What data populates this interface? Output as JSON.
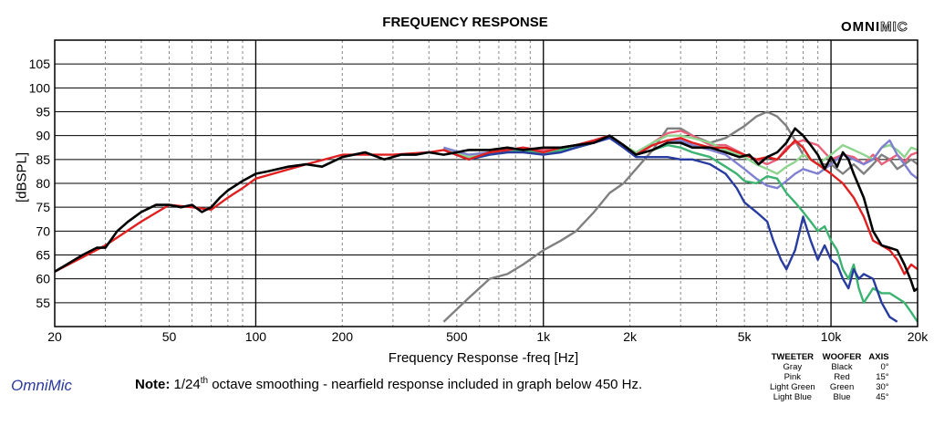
{
  "chart_data": {
    "type": "line",
    "title": "FREQUENCY RESPONSE",
    "brand_prefix": "OMNI",
    "brand_suffix": "MIC",
    "xlabel": "Frequency Response -freq [Hz]",
    "ylabel": "[dBSPL]",
    "xscale": "log",
    "xlim": [
      20,
      20000
    ],
    "ylim": [
      50,
      110
    ],
    "x_ticks": [
      20,
      50,
      100,
      200,
      500,
      1000,
      2000,
      5000,
      10000,
      20000
    ],
    "x_tick_labels": [
      "20",
      "50",
      "100",
      "200",
      "500",
      "1k",
      "2k",
      "5k",
      "10k",
      "20k"
    ],
    "y_ticks": [
      55,
      60,
      65,
      70,
      75,
      80,
      85,
      90,
      95,
      100,
      105
    ],
    "grid": true,
    "series": [
      {
        "name": "Gray",
        "color": "#808080",
        "x": [
          450,
          550,
          650,
          750,
          850,
          1000,
          1150,
          1300,
          1500,
          1700,
          1900,
          2100,
          2400,
          2700,
          3000,
          3300,
          3800,
          4300,
          5000,
          5500,
          6000,
          6500,
          7000,
          7500,
          8000,
          9000,
          10000,
          11000,
          12000,
          13000,
          14000,
          15000,
          16000,
          17000,
          18000,
          19000,
          20000
        ],
        "y": [
          51,
          56,
          60,
          61,
          63,
          66,
          68,
          70,
          74,
          78,
          80,
          83,
          87,
          91.5,
          91.5,
          90,
          88.5,
          89.5,
          92,
          94,
          95,
          94,
          92,
          89,
          86,
          84,
          84,
          82,
          84,
          82,
          84,
          86,
          85,
          83,
          84,
          85,
          84
        ]
      },
      {
        "name": "Pink",
        "color": "#e8607a",
        "x": [
          450,
          550,
          650,
          750,
          850,
          1000,
          1150,
          1300,
          1500,
          1700,
          1900,
          2100,
          2400,
          2700,
          3000,
          3300,
          3800,
          4300,
          5000,
          5500,
          6000,
          6500,
          7000,
          7500,
          8000,
          9000,
          10000,
          11000,
          12000,
          13000,
          14000,
          15000,
          16000,
          17000,
          18000,
          19000,
          20000
        ],
        "y": [
          87,
          85,
          86.5,
          87,
          87.5,
          87,
          87.5,
          88,
          89,
          90,
          88,
          86,
          88.5,
          90.5,
          91,
          90,
          88,
          88,
          86,
          85,
          84,
          85,
          87.5,
          88.5,
          89,
          88,
          85,
          86,
          85.5,
          84,
          86,
          84,
          85,
          86,
          84.5,
          86,
          86.5
        ]
      },
      {
        "name": "Light Green",
        "color": "#8fd48f",
        "x": [
          450,
          550,
          650,
          750,
          850,
          1000,
          1150,
          1300,
          1500,
          1700,
          1900,
          2100,
          2400,
          2700,
          3000,
          3300,
          3800,
          4300,
          5000,
          5500,
          6000,
          6500,
          7000,
          7500,
          8000,
          9000,
          10000,
          11000,
          12000,
          13000,
          14000,
          15000,
          16000,
          17000,
          18000,
          19000,
          20000
        ],
        "y": [
          87.5,
          85.5,
          86.5,
          87,
          87,
          86.5,
          87.5,
          88,
          89,
          90,
          88,
          86.5,
          88.5,
          90,
          90,
          89.5,
          88.5,
          87,
          85.5,
          84,
          83,
          82,
          83.5,
          84.5,
          86,
          84,
          86,
          88,
          87,
          86,
          85,
          87.5,
          88,
          87,
          85.5,
          87.5,
          87
        ]
      },
      {
        "name": "Light Blue",
        "color": "#8080d0",
        "x": [
          450,
          550,
          650,
          750,
          850,
          1000,
          1150,
          1300,
          1500,
          1700,
          1900,
          2100,
          2400,
          2700,
          3000,
          3300,
          3800,
          4300,
          5000,
          5500,
          6000,
          6500,
          7000,
          7500,
          8000,
          9000,
          10000,
          11000,
          12000,
          13000,
          14000,
          15000,
          16000,
          17000,
          18000,
          19000,
          20000
        ],
        "y": [
          87.5,
          86,
          86.5,
          87,
          87,
          86.5,
          87.5,
          88,
          89,
          90,
          88,
          86,
          88,
          89,
          89,
          88,
          87,
          86,
          83,
          81,
          79.5,
          79,
          80.5,
          82,
          83,
          82,
          84,
          86,
          85,
          84,
          85,
          87.5,
          89,
          86,
          84,
          82,
          81
        ]
      },
      {
        "name": "Green",
        "color": "#3cb371",
        "x": [
          450,
          550,
          650,
          750,
          850,
          1000,
          1150,
          1300,
          1500,
          1700,
          1900,
          2100,
          2400,
          2700,
          3000,
          3300,
          3800,
          4300,
          4700,
          5000,
          5500,
          6000,
          6500,
          7000,
          7500,
          8000,
          8500,
          9000,
          9500,
          10000,
          10500,
          11000,
          11500,
          12000,
          12500,
          13000,
          14000,
          15000,
          16000,
          17000,
          18000,
          19000,
          20000
        ],
        "y": [
          87,
          85,
          86,
          86.5,
          87,
          86,
          87,
          87.5,
          88.5,
          90,
          88,
          86,
          87,
          88,
          87.5,
          86.5,
          85.5,
          83.5,
          82,
          80.5,
          80,
          81.5,
          81,
          78,
          76,
          74,
          72,
          70,
          71,
          68,
          66,
          62,
          60,
          63,
          58,
          55,
          58,
          57,
          57,
          56,
          55,
          53,
          51
        ]
      },
      {
        "name": "Blue",
        "color": "#283ca0",
        "x": [
          450,
          550,
          650,
          750,
          850,
          1000,
          1150,
          1300,
          1500,
          1700,
          1900,
          2100,
          2400,
          2700,
          3000,
          3300,
          3800,
          4300,
          4700,
          5000,
          5500,
          6000,
          6300,
          6700,
          7000,
          7500,
          8000,
          8500,
          9000,
          9500,
          10000,
          10500,
          11000,
          11500,
          12000,
          12500,
          13000,
          14000,
          15000,
          16000,
          17000
        ],
        "y": [
          87,
          85,
          86,
          86.5,
          86.5,
          86,
          86.5,
          87.5,
          88.5,
          89.5,
          87.5,
          85.5,
          85.5,
          85.5,
          85,
          85,
          84,
          82,
          79,
          76,
          74,
          72,
          68,
          64,
          62,
          66,
          73,
          68,
          64,
          67,
          64,
          63,
          60,
          58,
          62,
          60,
          61,
          60,
          55,
          52,
          51
        ]
      },
      {
        "name": "Red",
        "color": "#e02020",
        "x": [
          20,
          30,
          40,
          50,
          60,
          70,
          80,
          90,
          100,
          150,
          200,
          300,
          400,
          450,
          550,
          650,
          750,
          850,
          1000,
          1150,
          1300,
          1500,
          1700,
          1900,
          2100,
          2400,
          2700,
          3000,
          3300,
          3800,
          4300,
          5000,
          5500,
          6000,
          6500,
          7000,
          7500,
          8000,
          8500,
          9000,
          10000,
          11000,
          12000,
          13000,
          14000,
          15000,
          16000,
          17000,
          18000,
          19000,
          20000
        ],
        "y": [
          61.5,
          67,
          72,
          75.5,
          75,
          74.5,
          77,
          79,
          81,
          84,
          86,
          86,
          86.5,
          87,
          85,
          86.5,
          87,
          87.5,
          86.5,
          87.5,
          88,
          89,
          90,
          88,
          86,
          88,
          89,
          89.5,
          88.5,
          87.5,
          87.5,
          86,
          85,
          85.5,
          85,
          87,
          89,
          87.5,
          85,
          84,
          82,
          80,
          77,
          73,
          68,
          67,
          66,
          64,
          61,
          63,
          62
        ]
      },
      {
        "name": "Black",
        "color": "#000000",
        "x": [
          20,
          22,
          25,
          28,
          30,
          33,
          36,
          40,
          45,
          50,
          55,
          60,
          65,
          70,
          75,
          80,
          90,
          100,
          110,
          130,
          150,
          170,
          200,
          240,
          280,
          320,
          360,
          400,
          450,
          500,
          550,
          650,
          750,
          850,
          1000,
          1150,
          1300,
          1500,
          1700,
          1900,
          2100,
          2400,
          2700,
          3000,
          3300,
          3800,
          4300,
          4800,
          5200,
          5600,
          6000,
          6500,
          7000,
          7500,
          8000,
          8500,
          9000,
          9500,
          10000,
          10500,
          11000,
          11500,
          12000,
          13000,
          14000,
          15000,
          16000,
          17000,
          18000,
          19000,
          19500,
          20000
        ],
        "y": [
          61.5,
          63,
          65,
          66.5,
          66.5,
          70,
          72,
          74,
          75.5,
          75.5,
          75,
          75.5,
          74,
          75,
          77,
          78.5,
          80.5,
          82,
          82.5,
          83.5,
          84,
          83.5,
          85.5,
          86.5,
          85,
          86,
          86,
          86.5,
          86,
          86.5,
          87,
          87,
          87.5,
          87,
          87.5,
          87.5,
          88,
          88.5,
          90,
          88,
          86,
          87,
          88.5,
          88.5,
          87.5,
          87.5,
          86.5,
          85.5,
          86,
          84,
          85.5,
          86.5,
          88.5,
          91.5,
          90,
          88,
          86,
          83,
          85.5,
          83.5,
          86.5,
          85,
          82,
          77,
          70,
          67,
          66.5,
          66,
          63,
          59.5,
          57.5,
          58
        ]
      }
    ],
    "annotations": {
      "logo_text": "OmniMic",
      "note_label": "Note:",
      "note_prefix": "1/24",
      "note_superscript": "th",
      "note_rest": "octave smoothing - nearfield response included in graph below 450 Hz."
    },
    "legend_table": {
      "headers": [
        "TWEETER",
        "WOOFER",
        "AXIS"
      ],
      "rows": [
        [
          "Gray",
          "Black",
          "0°"
        ],
        [
          "Pink",
          "Red",
          "15°"
        ],
        [
          "Light Green",
          "Green",
          "30°"
        ],
        [
          "Light Blue",
          "Blue",
          "45°"
        ]
      ]
    }
  }
}
